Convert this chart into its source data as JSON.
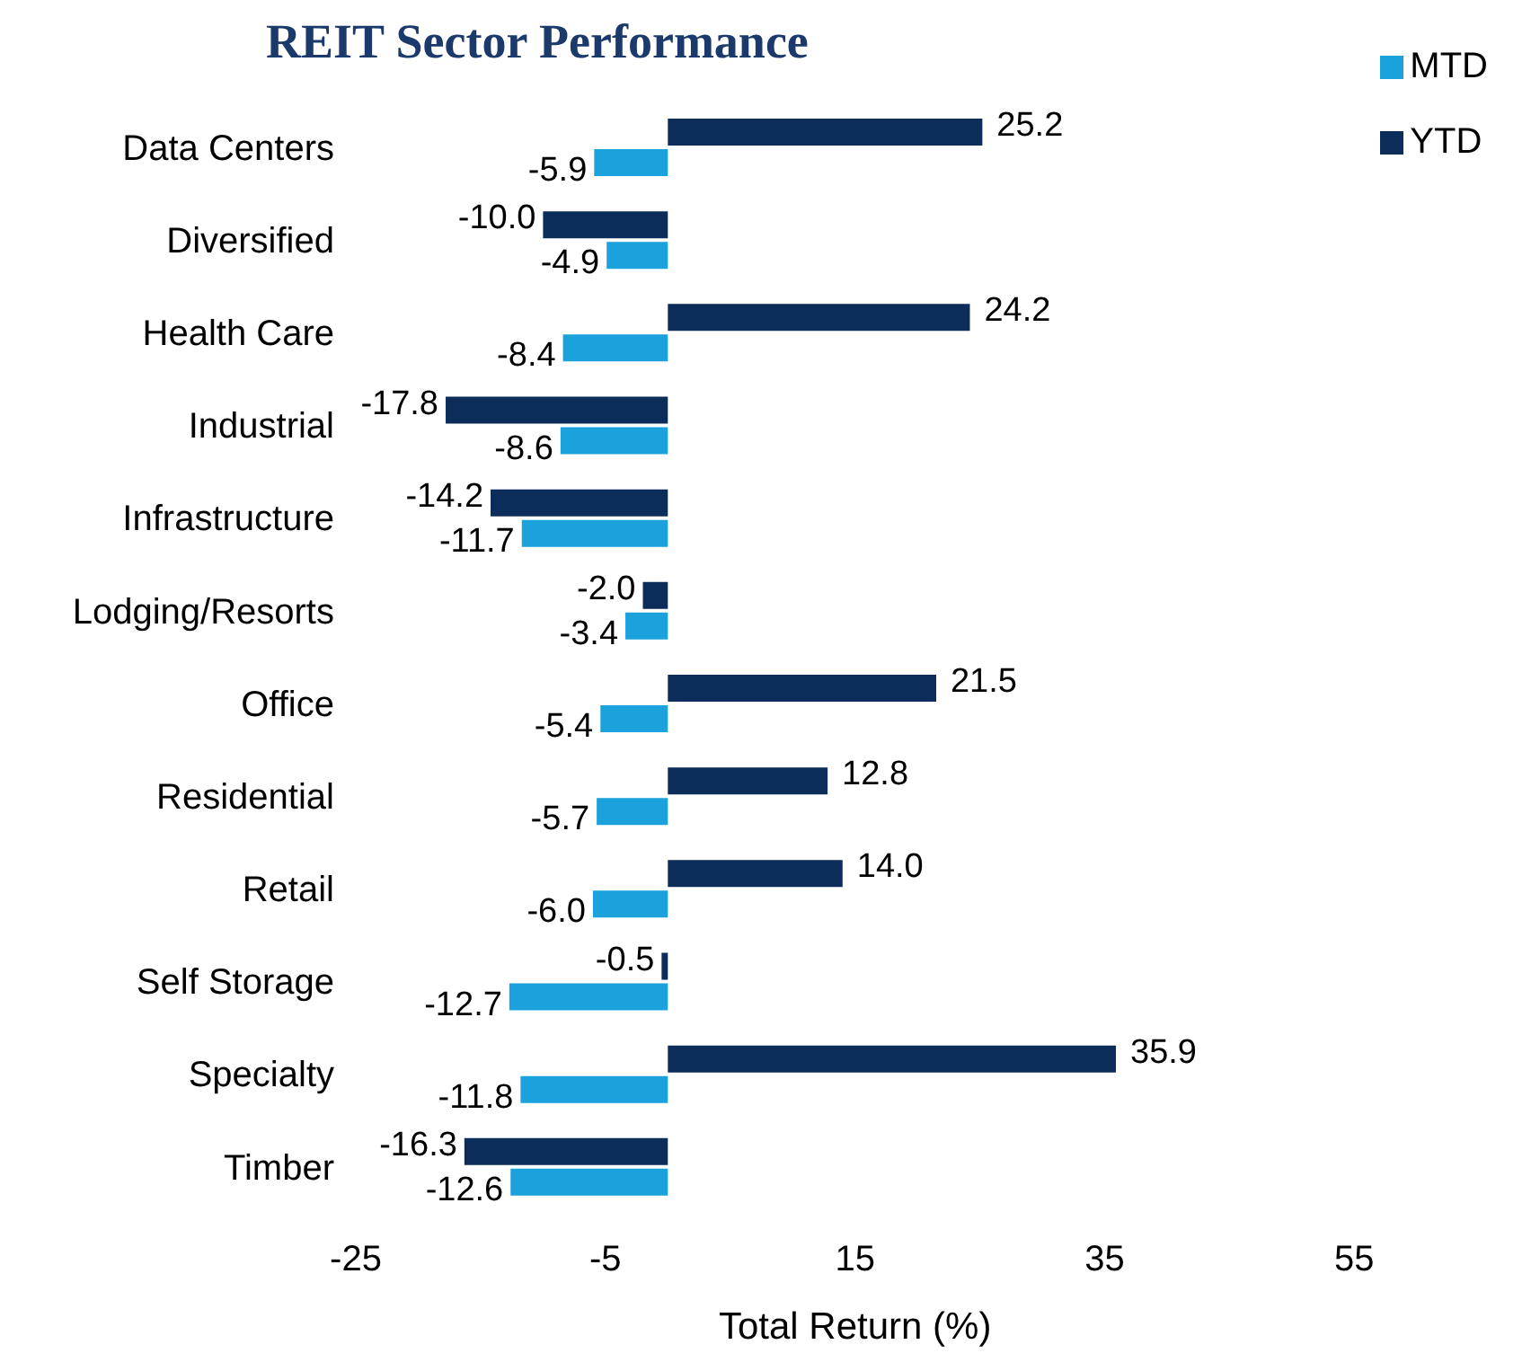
{
  "chart_data": {
    "type": "bar",
    "title": "REIT Sector Performance",
    "xlabel": "Total Return (%)",
    "orientation": "horizontal",
    "categories": [
      "Data Centers",
      "Diversified",
      "Health Care",
      "Industrial",
      "Infrastructure",
      "Lodging/Resorts",
      "Office",
      "Residential",
      "Retail",
      "Self Storage",
      "Specialty",
      "Timber"
    ],
    "series": [
      {
        "name": "YTD",
        "color": "#0c2d5a",
        "values": [
          25.2,
          -10.0,
          24.2,
          -17.8,
          -14.2,
          -2.0,
          21.5,
          12.8,
          14.0,
          -0.5,
          35.9,
          -16.3
        ],
        "value_labels": [
          "25.2",
          "-10.0",
          "24.2",
          "-17.8",
          "-14.2",
          "-2.0",
          "21.5",
          "12.8",
          "14.0",
          "-0.5",
          "35.9",
          "-16.3"
        ]
      },
      {
        "name": "MTD",
        "color": "#1ba1dc",
        "values": [
          -5.9,
          -4.9,
          -8.4,
          -8.6,
          -11.7,
          -3.4,
          -5.4,
          -5.7,
          -6.0,
          -12.7,
          -11.8,
          -12.6
        ],
        "value_labels": [
          "-5.9",
          "-4.9",
          "-8.4",
          "-8.6",
          "-11.7",
          "-3.4",
          "-5.4",
          "-5.7",
          "-6.0",
          "-12.7",
          "-11.8",
          "-12.6"
        ]
      }
    ],
    "xlim": [
      -25,
      55
    ],
    "xticks": [
      -25,
      -5,
      15,
      35,
      55
    ],
    "grid": false,
    "legend": "top right"
  }
}
